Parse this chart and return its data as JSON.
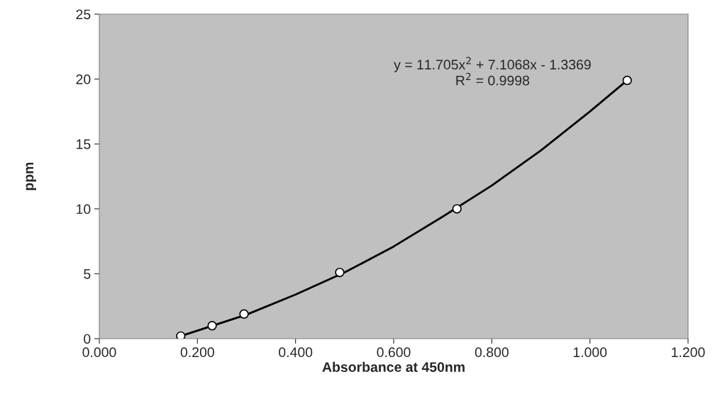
{
  "chart_data": {
    "type": "scatter",
    "xlabel": "Absorbance at 450nm",
    "ylabel": "ppm",
    "series": [
      {
        "color": "#ffffff",
        "marker": "circle",
        "x": [
          0.166,
          0.23,
          0.295,
          0.49,
          0.729,
          1.076
        ],
        "values": [
          0.2,
          1.0,
          1.9,
          5.1,
          10.0,
          19.9
        ]
      },
      {
        "type": "line",
        "color": "#000000",
        "marker": "none",
        "line_style": "solid",
        "x": [
          0.166,
          0.3,
          0.4,
          0.5,
          0.6,
          0.7,
          0.8,
          0.9,
          1.0,
          1.076
        ],
        "values": [
          0.2,
          1.85,
          3.4,
          5.1,
          7.1,
          9.4,
          11.8,
          14.5,
          17.5,
          19.9
        ]
      }
    ],
    "annotations": [
      "y = 11.705x$^{2}$ + 7.1068x - 1.3369\nR$^{2}$ = 0.9998"
    ],
    "xlim": [
      0,
      1.2
    ],
    "ylim": [
      0,
      25
    ],
    "xticks": [
      {
        "value": 0,
        "label": "0.000"
      },
      {
        "value": 0.2,
        "label": "0.200"
      },
      {
        "value": 0.4,
        "label": "0.400"
      },
      {
        "value": 0.6,
        "label": "0.600"
      },
      {
        "value": 0.8,
        "label": "0.800"
      },
      {
        "value": 1.0,
        "label": "1.000"
      },
      {
        "value": 1.2,
        "label": "1.200"
      }
    ],
    "yticks": [
      0,
      5,
      10,
      15,
      20,
      25
    ],
    "grid": false,
    "legend": false
  }
}
